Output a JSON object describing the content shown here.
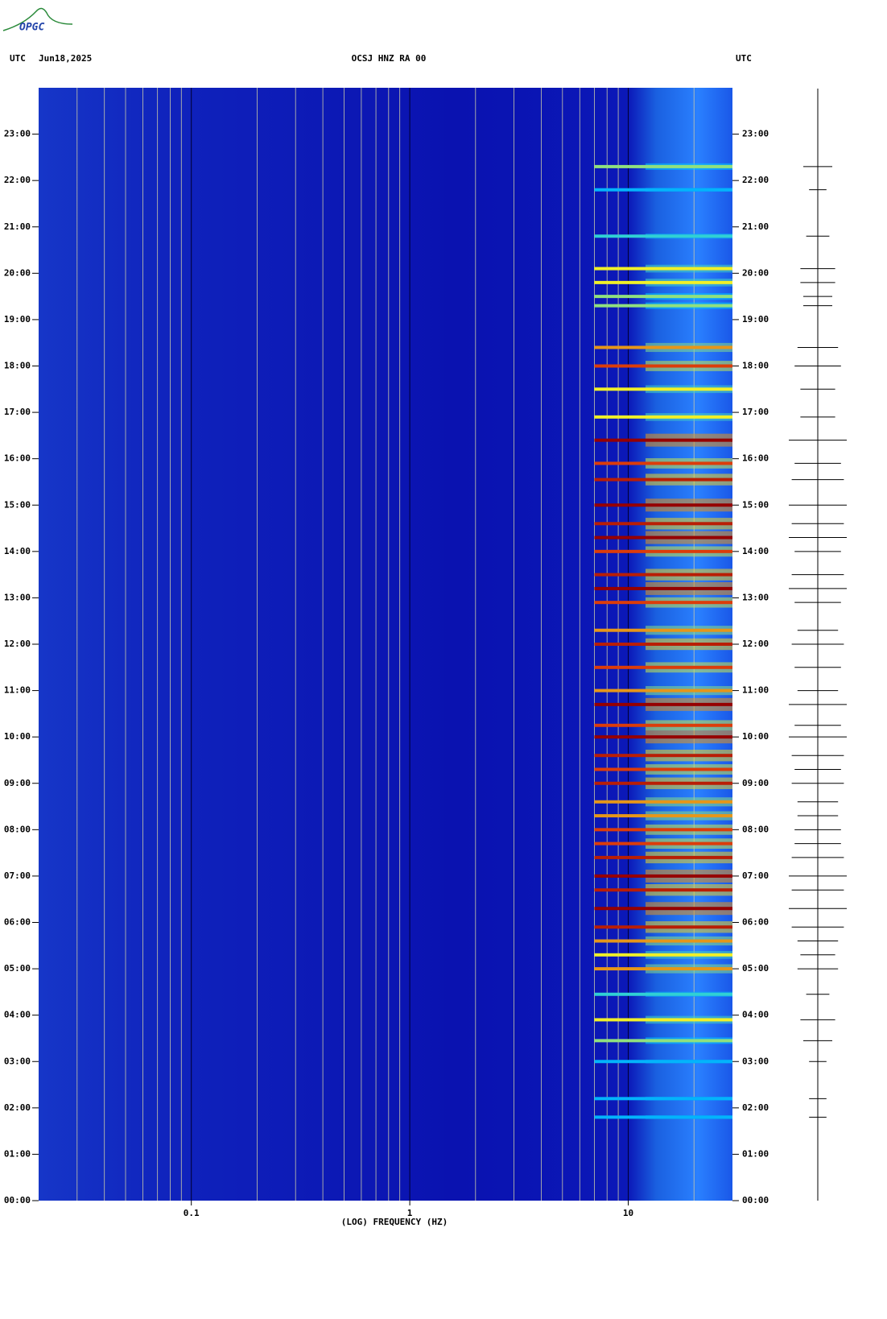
{
  "chart_data": {
    "type": "spectrogram",
    "logo": "OPGC",
    "left_header": "UTC",
    "date": "Jun18,2025",
    "title": "OCSJ HNZ RA 00",
    "right_header": "UTC",
    "xlabel": "(LOG) FREQUENCY (HZ)",
    "xlog": true,
    "xlim": [
      0.02,
      30
    ],
    "xticks": [
      0.1,
      1,
      10
    ],
    "xminorticks": [
      0.03,
      0.04,
      0.05,
      0.06,
      0.07,
      0.08,
      0.09,
      0.2,
      0.3,
      0.4,
      0.5,
      0.6,
      0.7,
      0.8,
      0.9,
      2,
      3,
      4,
      5,
      6,
      7,
      8,
      9,
      20
    ],
    "ylim": [
      0,
      24
    ],
    "yticks": [
      {
        "value": 0,
        "label": "00:00"
      },
      {
        "value": 1,
        "label": "01:00"
      },
      {
        "value": 2,
        "label": "02:00"
      },
      {
        "value": 3,
        "label": "03:00"
      },
      {
        "value": 4,
        "label": "04:00"
      },
      {
        "value": 5,
        "label": "05:00"
      },
      {
        "value": 6,
        "label": "06:00"
      },
      {
        "value": 7,
        "label": "07:00"
      },
      {
        "value": 8,
        "label": "08:00"
      },
      {
        "value": 9,
        "label": "09:00"
      },
      {
        "value": 10,
        "label": "10:00"
      },
      {
        "value": 11,
        "label": "11:00"
      },
      {
        "value": 12,
        "label": "12:00"
      },
      {
        "value": 13,
        "label": "13:00"
      },
      {
        "value": 14,
        "label": "14:00"
      },
      {
        "value": 15,
        "label": "15:00"
      },
      {
        "value": 16,
        "label": "16:00"
      },
      {
        "value": 17,
        "label": "17:00"
      },
      {
        "value": 18,
        "label": "18:00"
      },
      {
        "value": 19,
        "label": "19:00"
      },
      {
        "value": 20,
        "label": "20:00"
      },
      {
        "value": 21,
        "label": "21:00"
      },
      {
        "value": 22,
        "label": "22:00"
      },
      {
        "value": 23,
        "label": "23:00"
      }
    ],
    "event_times": [
      1.8,
      2.2,
      3.0,
      3.45,
      3.9,
      4.45,
      5.0,
      5.3,
      5.6,
      5.9,
      6.3,
      6.7,
      7.0,
      7.4,
      7.7,
      8.0,
      8.3,
      8.6,
      9.0,
      9.3,
      9.6,
      10.0,
      10.25,
      10.7,
      11.0,
      11.5,
      12.0,
      12.3,
      12.9,
      13.2,
      13.5,
      14.0,
      14.3,
      14.6,
      15.0,
      15.55,
      15.9,
      16.4,
      16.9,
      17.5,
      18.0,
      18.4,
      19.3,
      19.5,
      19.8,
      20.1,
      20.8,
      21.8,
      22.3
    ],
    "event_strengths": [
      0.3,
      0.3,
      0.3,
      0.5,
      0.6,
      0.4,
      0.7,
      0.6,
      0.7,
      0.9,
      1.0,
      0.9,
      1.0,
      0.9,
      0.8,
      0.8,
      0.7,
      0.7,
      0.9,
      0.8,
      0.9,
      1.0,
      0.8,
      1.0,
      0.7,
      0.8,
      0.9,
      0.7,
      0.8,
      1.0,
      0.9,
      0.8,
      1.0,
      0.9,
      1.0,
      0.9,
      0.8,
      1.0,
      0.6,
      0.6,
      0.8,
      0.7,
      0.5,
      0.5,
      0.6,
      0.6,
      0.4,
      0.3,
      0.5
    ]
  }
}
